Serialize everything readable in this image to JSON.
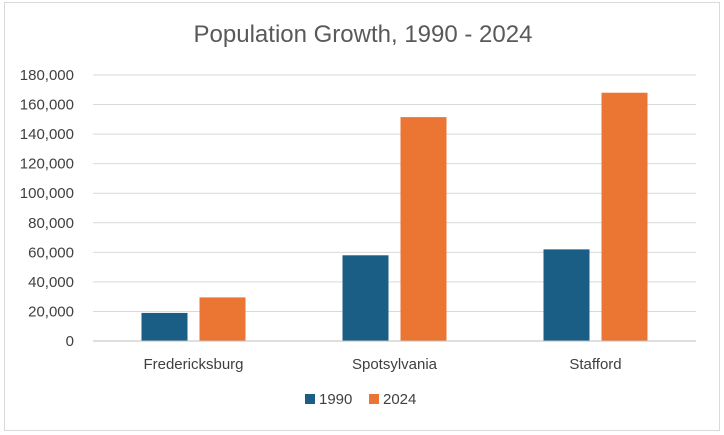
{
  "chart_data": {
    "type": "bar",
    "title": "Population Growth, 1990 - 2024",
    "xlabel": "",
    "ylabel": "",
    "categories": [
      "Fredericksburg",
      "Spotsylvania",
      "Stafford"
    ],
    "series": [
      {
        "name": "1990",
        "color": "#1a5e85",
        "values": [
          19000,
          58000,
          62000
        ]
      },
      {
        "name": "2024",
        "color": "#eb7533",
        "values": [
          29500,
          151500,
          168000
        ]
      }
    ],
    "ylim": [
      0,
      180000
    ],
    "yticks": [
      0,
      20000,
      40000,
      60000,
      80000,
      100000,
      120000,
      140000,
      160000,
      180000
    ],
    "ytick_labels": [
      "0",
      "20,000",
      "40,000",
      "60,000",
      "80,000",
      "100,000",
      "120,000",
      "140,000",
      "160,000",
      "180,000"
    ],
    "grid": true,
    "legend_position": "bottom"
  }
}
